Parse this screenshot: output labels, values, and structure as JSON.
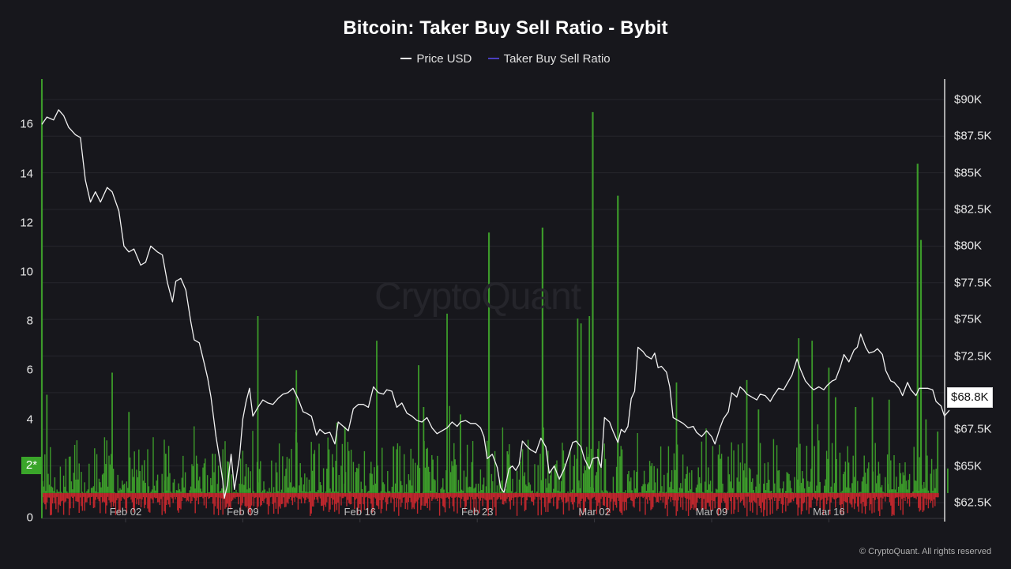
{
  "header": {
    "title": "Bitcoin: Taker Buy Sell Ratio - Bybit",
    "legend": [
      {
        "label": "Price USD",
        "color": "#ffffff"
      },
      {
        "label": "Taker Buy Sell Ratio",
        "color": "#4b3fbf"
      }
    ]
  },
  "watermark": "CryptoQuant",
  "copyright": "© CryptoQuant. All rights reserved",
  "reference_badge": "2*",
  "current_price_badge": "$68.8K",
  "colors": {
    "background": "#17171c",
    "grid": "#26262c",
    "price_line": "#f2f2f2",
    "ratio_above": "#3c9a2a",
    "ratio_below": "#c0272d",
    "badge_green": "#3aa52a"
  },
  "chart_data": {
    "type": "line",
    "title": "Bitcoin: Taker Buy Sell Ratio - Bybit",
    "xlabel": "",
    "ylabel_left": "Taker Buy Sell Ratio",
    "ylabel_right": "Price USD",
    "x_ticks": [
      "Feb 02",
      "Feb 09",
      "Feb 16",
      "Feb 23",
      "Mar 02",
      "Mar 09",
      "Mar 16"
    ],
    "y_left_ticks": [
      "0",
      "2",
      "4",
      "6",
      "8",
      "10",
      "12",
      "14",
      "16"
    ],
    "y_left_range": [
      0,
      17.5
    ],
    "y_right_ticks": [
      "$62.5K",
      "$65K",
      "$67.5K",
      "$70K",
      "$72.5K",
      "$75K",
      "$77.5K",
      "$80K",
      "$82.5K",
      "$85K",
      "$87.5K",
      "$90K"
    ],
    "y_right_range": [
      61500,
      91500
    ],
    "reference_line": 1,
    "grid": true,
    "legend_position": "top",
    "date_range": [
      "Jan 28",
      "Mar 21"
    ],
    "series": [
      {
        "name": "Price USD",
        "axis": "right",
        "unit": "USD (K)",
        "points_day_value": [
          [
            0,
            88.3
          ],
          [
            0.3,
            88.8
          ],
          [
            0.7,
            88.6
          ],
          [
            1.0,
            89.3
          ],
          [
            1.3,
            88.9
          ],
          [
            1.6,
            88.1
          ],
          [
            2.0,
            87.6
          ],
          [
            2.3,
            87.4
          ],
          [
            2.6,
            84.5
          ],
          [
            2.9,
            83.0
          ],
          [
            3.2,
            83.7
          ],
          [
            3.5,
            83.0
          ],
          [
            3.9,
            84.0
          ],
          [
            4.2,
            83.7
          ],
          [
            4.6,
            82.4
          ],
          [
            4.9,
            80.0
          ],
          [
            5.2,
            79.6
          ],
          [
            5.5,
            79.8
          ],
          [
            5.9,
            78.7
          ],
          [
            6.2,
            78.9
          ],
          [
            6.5,
            80.0
          ],
          [
            6.9,
            79.6
          ],
          [
            7.2,
            79.4
          ],
          [
            7.5,
            77.5
          ],
          [
            7.8,
            76.2
          ],
          [
            8.0,
            77.6
          ],
          [
            8.3,
            77.8
          ],
          [
            8.6,
            77.0
          ],
          [
            8.9,
            74.8
          ],
          [
            9.1,
            73.6
          ],
          [
            9.4,
            73.4
          ],
          [
            9.7,
            72.0
          ],
          [
            9.9,
            71.0
          ],
          [
            10.1,
            69.7
          ],
          [
            10.4,
            67.0
          ],
          [
            10.6,
            65.6
          ],
          [
            10.8,
            64.0
          ],
          [
            10.9,
            62.8
          ],
          [
            11.1,
            63.8
          ],
          [
            11.3,
            65.8
          ],
          [
            11.5,
            63.4
          ],
          [
            11.8,
            65.6
          ],
          [
            12.0,
            68.2
          ],
          [
            12.2,
            69.4
          ],
          [
            12.4,
            70.3
          ],
          [
            12.6,
            68.4
          ],
          [
            12.9,
            69.0
          ],
          [
            13.2,
            69.5
          ],
          [
            13.5,
            69.3
          ],
          [
            13.8,
            69.2
          ],
          [
            14.1,
            69.6
          ],
          [
            14.4,
            69.9
          ],
          [
            14.7,
            70.0
          ],
          [
            15.0,
            70.3
          ],
          [
            15.3,
            69.6
          ],
          [
            15.6,
            68.7
          ],
          [
            15.8,
            68.6
          ],
          [
            16.1,
            68.4
          ],
          [
            16.4,
            67.1
          ],
          [
            16.6,
            67.5
          ],
          [
            16.9,
            67.2
          ],
          [
            17.2,
            67.3
          ],
          [
            17.5,
            66.5
          ],
          [
            17.7,
            68.0
          ],
          [
            18.0,
            67.7
          ],
          [
            18.3,
            67.4
          ],
          [
            18.6,
            68.9
          ],
          [
            18.9,
            69.2
          ],
          [
            19.2,
            69.2
          ],
          [
            19.5,
            69.0
          ],
          [
            19.8,
            70.4
          ],
          [
            20.1,
            70.0
          ],
          [
            20.4,
            69.9
          ],
          [
            20.6,
            70.2
          ],
          [
            20.9,
            70.1
          ],
          [
            21.2,
            69.0
          ],
          [
            21.5,
            69.3
          ],
          [
            21.8,
            68.6
          ],
          [
            22.1,
            68.4
          ],
          [
            22.4,
            68.1
          ],
          [
            22.7,
            68.0
          ],
          [
            23.0,
            68.3
          ],
          [
            23.3,
            67.6
          ],
          [
            23.6,
            67.2
          ],
          [
            23.9,
            67.4
          ],
          [
            24.2,
            67.6
          ],
          [
            24.5,
            68.0
          ],
          [
            24.8,
            67.7
          ],
          [
            25.0,
            68.0
          ],
          [
            25.3,
            68.1
          ],
          [
            25.6,
            67.9
          ],
          [
            25.9,
            67.9
          ],
          [
            26.2,
            67.6
          ],
          [
            26.4,
            67.0
          ],
          [
            26.6,
            65.5
          ],
          [
            26.9,
            65.8
          ],
          [
            27.2,
            64.9
          ],
          [
            27.4,
            63.5
          ],
          [
            27.6,
            63.2
          ],
          [
            27.9,
            64.8
          ],
          [
            28.1,
            65.0
          ],
          [
            28.3,
            64.7
          ],
          [
            28.5,
            65.1
          ],
          [
            28.7,
            66.7
          ],
          [
            29.0,
            66.3
          ],
          [
            29.2,
            66.1
          ],
          [
            29.5,
            65.9
          ],
          [
            29.8,
            66.9
          ],
          [
            30.1,
            66.3
          ],
          [
            30.3,
            64.5
          ],
          [
            30.6,
            65.0
          ],
          [
            30.9,
            64.1
          ],
          [
            31.2,
            64.8
          ],
          [
            31.4,
            65.5
          ],
          [
            31.7,
            66.6
          ],
          [
            31.9,
            66.7
          ],
          [
            32.2,
            66.3
          ],
          [
            32.4,
            65.5
          ],
          [
            32.7,
            64.8
          ],
          [
            32.9,
            65.5
          ],
          [
            33.2,
            65.6
          ],
          [
            33.4,
            64.9
          ],
          [
            33.6,
            68.3
          ],
          [
            33.9,
            68.0
          ],
          [
            34.1,
            67.4
          ],
          [
            34.4,
            66.6
          ],
          [
            34.6,
            67.5
          ],
          [
            34.8,
            67.3
          ],
          [
            35.0,
            67.7
          ],
          [
            35.2,
            69.6
          ],
          [
            35.4,
            70.1
          ],
          [
            35.6,
            73.1
          ],
          [
            35.9,
            72.8
          ],
          [
            36.1,
            72.5
          ],
          [
            36.4,
            72.3
          ],
          [
            36.6,
            72.7
          ],
          [
            36.8,
            71.7
          ],
          [
            37.0,
            71.8
          ],
          [
            37.3,
            71.4
          ],
          [
            37.5,
            70.4
          ],
          [
            37.7,
            68.3
          ],
          [
            38.0,
            68.1
          ],
          [
            38.3,
            67.9
          ],
          [
            38.6,
            67.6
          ],
          [
            38.9,
            67.7
          ],
          [
            39.1,
            67.3
          ],
          [
            39.4,
            67.0
          ],
          [
            39.7,
            67.4
          ],
          [
            40.0,
            67.0
          ],
          [
            40.2,
            66.5
          ],
          [
            40.5,
            67.6
          ],
          [
            40.7,
            68.2
          ],
          [
            41.0,
            68.7
          ],
          [
            41.2,
            70.0
          ],
          [
            41.5,
            69.7
          ],
          [
            41.7,
            70.4
          ],
          [
            41.9,
            70.2
          ],
          [
            42.1,
            69.9
          ],
          [
            42.4,
            69.7
          ],
          [
            42.7,
            69.5
          ],
          [
            42.9,
            69.9
          ],
          [
            43.2,
            69.8
          ],
          [
            43.5,
            69.4
          ],
          [
            43.7,
            69.8
          ],
          [
            44.0,
            70.3
          ],
          [
            44.3,
            70.2
          ],
          [
            44.5,
            70.6
          ],
          [
            44.8,
            71.2
          ],
          [
            45.1,
            72.3
          ],
          [
            45.3,
            71.6
          ],
          [
            45.6,
            70.8
          ],
          [
            45.9,
            70.4
          ],
          [
            46.1,
            70.2
          ],
          [
            46.4,
            70.4
          ],
          [
            46.7,
            70.2
          ],
          [
            46.9,
            70.5
          ],
          [
            47.2,
            70.8
          ],
          [
            47.4,
            70.9
          ],
          [
            47.7,
            71.8
          ],
          [
            47.9,
            72.6
          ],
          [
            48.2,
            72.1
          ],
          [
            48.5,
            72.9
          ],
          [
            48.7,
            73.1
          ],
          [
            48.9,
            74.0
          ],
          [
            49.2,
            73.1
          ],
          [
            49.4,
            72.7
          ],
          [
            49.7,
            72.8
          ],
          [
            49.9,
            73.0
          ],
          [
            50.2,
            72.6
          ],
          [
            50.4,
            71.5
          ],
          [
            50.7,
            70.8
          ],
          [
            50.9,
            70.7
          ],
          [
            51.2,
            70.3
          ],
          [
            51.4,
            69.8
          ],
          [
            51.7,
            70.7
          ],
          [
            51.9,
            70.2
          ],
          [
            52.2,
            69.8
          ],
          [
            52.4,
            70.3
          ],
          [
            52.7,
            70.3
          ],
          [
            52.9,
            70.3
          ],
          [
            53.2,
            70.2
          ],
          [
            53.4,
            69.4
          ],
          [
            53.7,
            69.1
          ],
          [
            53.9,
            68.4
          ],
          [
            54.2,
            68.8
          ]
        ]
      },
      {
        "name": "Taker Buy Sell Ratio",
        "axis": "left",
        "note": "Dense hourly bars around 1.0; green above 1, red below 1",
        "notable_spikes_day_value": [
          [
            0,
            17.4
          ],
          [
            0.3,
            5.0
          ],
          [
            4.2,
            5.9
          ],
          [
            5.2,
            4.3
          ],
          [
            7.4,
            2.6
          ],
          [
            10.2,
            2.6
          ],
          [
            12.9,
            8.2
          ],
          [
            15.2,
            6.0
          ],
          [
            18.1,
            3.7
          ],
          [
            20.0,
            7.2
          ],
          [
            21.0,
            2.9
          ],
          [
            22.5,
            6.2
          ],
          [
            22.8,
            4.5
          ],
          [
            24.2,
            8.3
          ],
          [
            25.0,
            4.2
          ],
          [
            26.7,
            11.6
          ],
          [
            27.8,
            2.7
          ],
          [
            29.9,
            11.8
          ],
          [
            32.0,
            8.1
          ],
          [
            32.2,
            7.9
          ],
          [
            32.7,
            8.2
          ],
          [
            32.9,
            16.5
          ],
          [
            34.4,
            13.1
          ],
          [
            37.9,
            5.5
          ],
          [
            42.1,
            5.6
          ],
          [
            42.8,
            4.4
          ],
          [
            45.2,
            7.3
          ],
          [
            46.0,
            7.2
          ],
          [
            47.0,
            6.1
          ],
          [
            47.4,
            4.9
          ],
          [
            48.6,
            4.5
          ],
          [
            49.6,
            4.9
          ],
          [
            50.6,
            4.8
          ],
          [
            52.3,
            14.4
          ],
          [
            52.5,
            11.3
          ],
          [
            52.8,
            4.0
          ],
          [
            53.5,
            3.5
          ],
          [
            54.1,
            2.0
          ]
        ]
      }
    ]
  }
}
